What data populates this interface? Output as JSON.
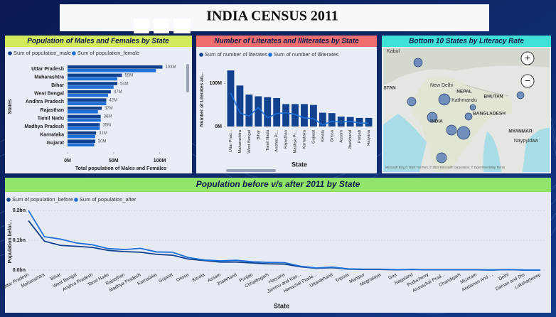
{
  "header": {
    "title": "INDIA CENSUS 2011"
  },
  "chart_data": [
    {
      "type": "hbar",
      "title": "Population of Males and Females by State",
      "categories": [
        "Uttar Pradesh",
        "Maharashtra",
        "Bihar",
        "West Bengal",
        "Andhra Pradesh",
        "Rajasthan",
        "Tamil Nadu",
        "Madhya Pradesh",
        "Karnataka",
        "Gujarat"
      ],
      "series": [
        {
          "name": "Sum of population_male",
          "color": "#12418f",
          "values": [
            103,
            59,
            54,
            47,
            42,
            37,
            36,
            35,
            31,
            30
          ],
          "value_labels": [
            "103M",
            "59M",
            "54M",
            "47M",
            "42M",
            "37M",
            "36M",
            "35M",
            "31M",
            "30M"
          ]
        },
        {
          "name": "Sum of population_female",
          "color": "#1e6fd6",
          "values": [
            96,
            54,
            50,
            44,
            42,
            33,
            36,
            35,
            30,
            29
          ]
        }
      ],
      "xlim": [
        0,
        115
      ],
      "xticks": [
        {
          "value": 0,
          "label": "0M"
        },
        {
          "value": 50,
          "label": "50M"
        },
        {
          "value": 100,
          "label": "100M"
        }
      ],
      "xlabel": "Total population of Males and Females",
      "ylabel": "States"
    },
    {
      "type": "bar-line",
      "title": "Number of Literates and Illiterates by State",
      "categories": [
        "Uttar Prad...",
        "Maharashtra",
        "West Bengal",
        "Bihar",
        "Tamil Nadu",
        "Andhra Pr...",
        "Rajasthan",
        "Madhya Pr...",
        "Karnataka",
        "Gujarat",
        "Kerala",
        "Orissa",
        "Assam",
        "Jharkhand",
        "Punjab",
        "Haryana"
      ],
      "series": [
        {
          "name": "Sum of number of literates",
          "color": "#12418f",
          "values": [
            130,
            95,
            74,
            70,
            68,
            66,
            52,
            52,
            52,
            50,
            32,
            31,
            23,
            22,
            20,
            20
          ]
        },
        {
          "name": "Sum of number of illiterates",
          "color": "#1e6fd6",
          "values": [
            78,
            32,
            24,
            44,
            20,
            30,
            32,
            28,
            20,
            18,
            4,
            12,
            10,
            12,
            8,
            8
          ]
        }
      ],
      "ylim": [
        0,
        140
      ],
      "yticks": [
        {
          "value": 0,
          "label": "0M"
        },
        {
          "value": 100,
          "label": "100M"
        }
      ],
      "xlabel": "State",
      "ylabel": "Number of Literates an..."
    },
    {
      "type": "map",
      "title": "Bottom 10 States by Literacy Rate",
      "places": [
        "Kabul",
        "STAN",
        "New Delhi",
        "NEPAL",
        "Kathmandu",
        "BHUTAN",
        "BANGLADESH",
        "INDIA",
        "MYANMAR",
        "Naypyidaw"
      ],
      "zoom": [
        "+",
        "−"
      ],
      "attribution": "Microsoft Bing  © 2024 TomTom, © 2024 Microsoft Corporation, © OpenStreetMap  Terms"
    },
    {
      "type": "line",
      "title": "Population before v/s after 2011 by State",
      "categories": [
        "Uttar Pradesh",
        "Maharashtra",
        "Bihar",
        "West Bengal",
        "Andhra Pradesh",
        "Tamil Nadu",
        "Rajasthan",
        "Madhya Pradesh",
        "Karnataka",
        "Gujarat",
        "Orissa",
        "Kerala",
        "Assam",
        "Jharkhand",
        "Punjab",
        "Chhattisgarh",
        "Haryana",
        "Jammu and Kas...",
        "Himachal Prade...",
        "Uttarakhand",
        "Tripura",
        "Manipur",
        "Meghalaya",
        "Goa",
        "Nagaland",
        "Puducherry",
        "Arunachal Prad...",
        "Chandigarh",
        "Mizoram",
        "Andaman And ...",
        "Delhi",
        "Daman and Diu",
        "Lakshadweep"
      ],
      "series": [
        {
          "name": "Sum of population_before",
          "color": "#12418f",
          "values": [
            0.166,
            0.097,
            0.083,
            0.08,
            0.076,
            0.066,
            0.062,
            0.06,
            0.053,
            0.05,
            0.037,
            0.032,
            0.027,
            0.027,
            0.024,
            0.021,
            0.02,
            0.011,
            0.006,
            0.008,
            0.003,
            0.002,
            0.002,
            0.001,
            0.002,
            0.001,
            0.001,
            0.001,
            0.001,
            0.0004,
            0.0015,
            0.0002,
            0.0001
          ]
        },
        {
          "name": "Sum of population_after",
          "color": "#1e6fd6",
          "values": [
            0.2,
            0.112,
            0.104,
            0.091,
            0.085,
            0.072,
            0.069,
            0.073,
            0.061,
            0.06,
            0.042,
            0.034,
            0.031,
            0.033,
            0.028,
            0.026,
            0.025,
            0.013,
            0.007,
            0.01,
            0.004,
            0.003,
            0.003,
            0.0015,
            0.002,
            0.0012,
            0.0014,
            0.001,
            0.001,
            0.0004,
            0.0017,
            0.0002,
            0.0001
          ]
        }
      ],
      "ylim": [
        0,
        0.21
      ],
      "yticks": [
        {
          "value": 0,
          "label": "0.0bn"
        },
        {
          "value": 0.1,
          "label": "0.1bn"
        },
        {
          "value": 0.2,
          "label": "0.2bn"
        }
      ],
      "grid": true,
      "xlabel": "State",
      "ylabel": "Population befor..."
    }
  ]
}
